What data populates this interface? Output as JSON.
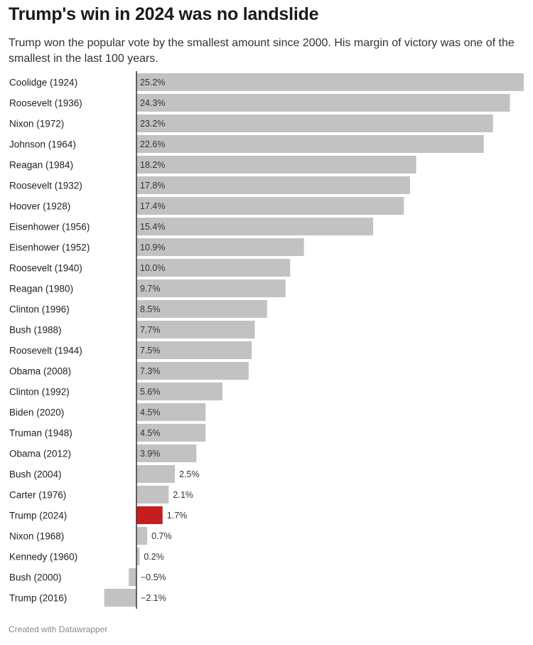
{
  "header": {
    "title": "Trump's win in 2024 was no landslide",
    "subtitle": "Trump won the popular vote by the smallest amount since 2000. His margin of victory was one of the smallest in the last 100 years."
  },
  "footer": {
    "credit": "Created with Datawrapper"
  },
  "colors": {
    "bar": "#c2c2c2",
    "highlight": "#c41e1e",
    "axis": "#333333"
  },
  "chart_data": {
    "type": "bar",
    "orientation": "horizontal",
    "title": "Trump's win in 2024 was no landslide",
    "subtitle": "Trump won the popular vote by the smallest amount since 2000. His margin of victory was one of the smallest in the last 100 years.",
    "unit": "%",
    "categories": [
      "Coolidge (1924)",
      "Roosevelt (1936)",
      "Nixon (1972)",
      "Johnson (1964)",
      "Reagan (1984)",
      "Roosevelt (1932)",
      "Hoover (1928)",
      "Eisenhower (1956)",
      "Eisenhower (1952)",
      "Roosevelt (1940)",
      "Reagan (1980)",
      "Clinton (1996)",
      "Bush (1988)",
      "Roosevelt (1944)",
      "Obama (2008)",
      "Clinton (1992)",
      "Biden (2020)",
      "Truman (1948)",
      "Obama (2012)",
      "Bush (2004)",
      "Carter (1976)",
      "Trump (2024)",
      "Nixon (1968)",
      "Kennedy (1960)",
      "Bush (2000)",
      "Trump (2016)"
    ],
    "values": [
      25.2,
      24.3,
      23.2,
      22.6,
      18.2,
      17.8,
      17.4,
      15.4,
      10.9,
      10.0,
      9.7,
      8.5,
      7.7,
      7.5,
      7.3,
      5.6,
      4.5,
      4.5,
      3.9,
      2.5,
      2.1,
      1.7,
      0.7,
      0.2,
      -0.5,
      -2.1
    ],
    "value_labels": [
      "25.2%",
      "24.3%",
      "23.2%",
      "22.6%",
      "18.2%",
      "17.8%",
      "17.4%",
      "15.4%",
      "10.9%",
      "10.0%",
      "9.7%",
      "8.5%",
      "7.7%",
      "7.5%",
      "7.3%",
      "5.6%",
      "4.5%",
      "4.5%",
      "3.9%",
      "2.5%",
      "2.1%",
      "1.7%",
      "0.7%",
      "0.2%",
      "−0.5%",
      "−2.1%"
    ],
    "highlight": [
      "Trump (2024)"
    ],
    "xlim": [
      -2.1,
      25.2
    ],
    "grid": false,
    "legend": "none"
  }
}
